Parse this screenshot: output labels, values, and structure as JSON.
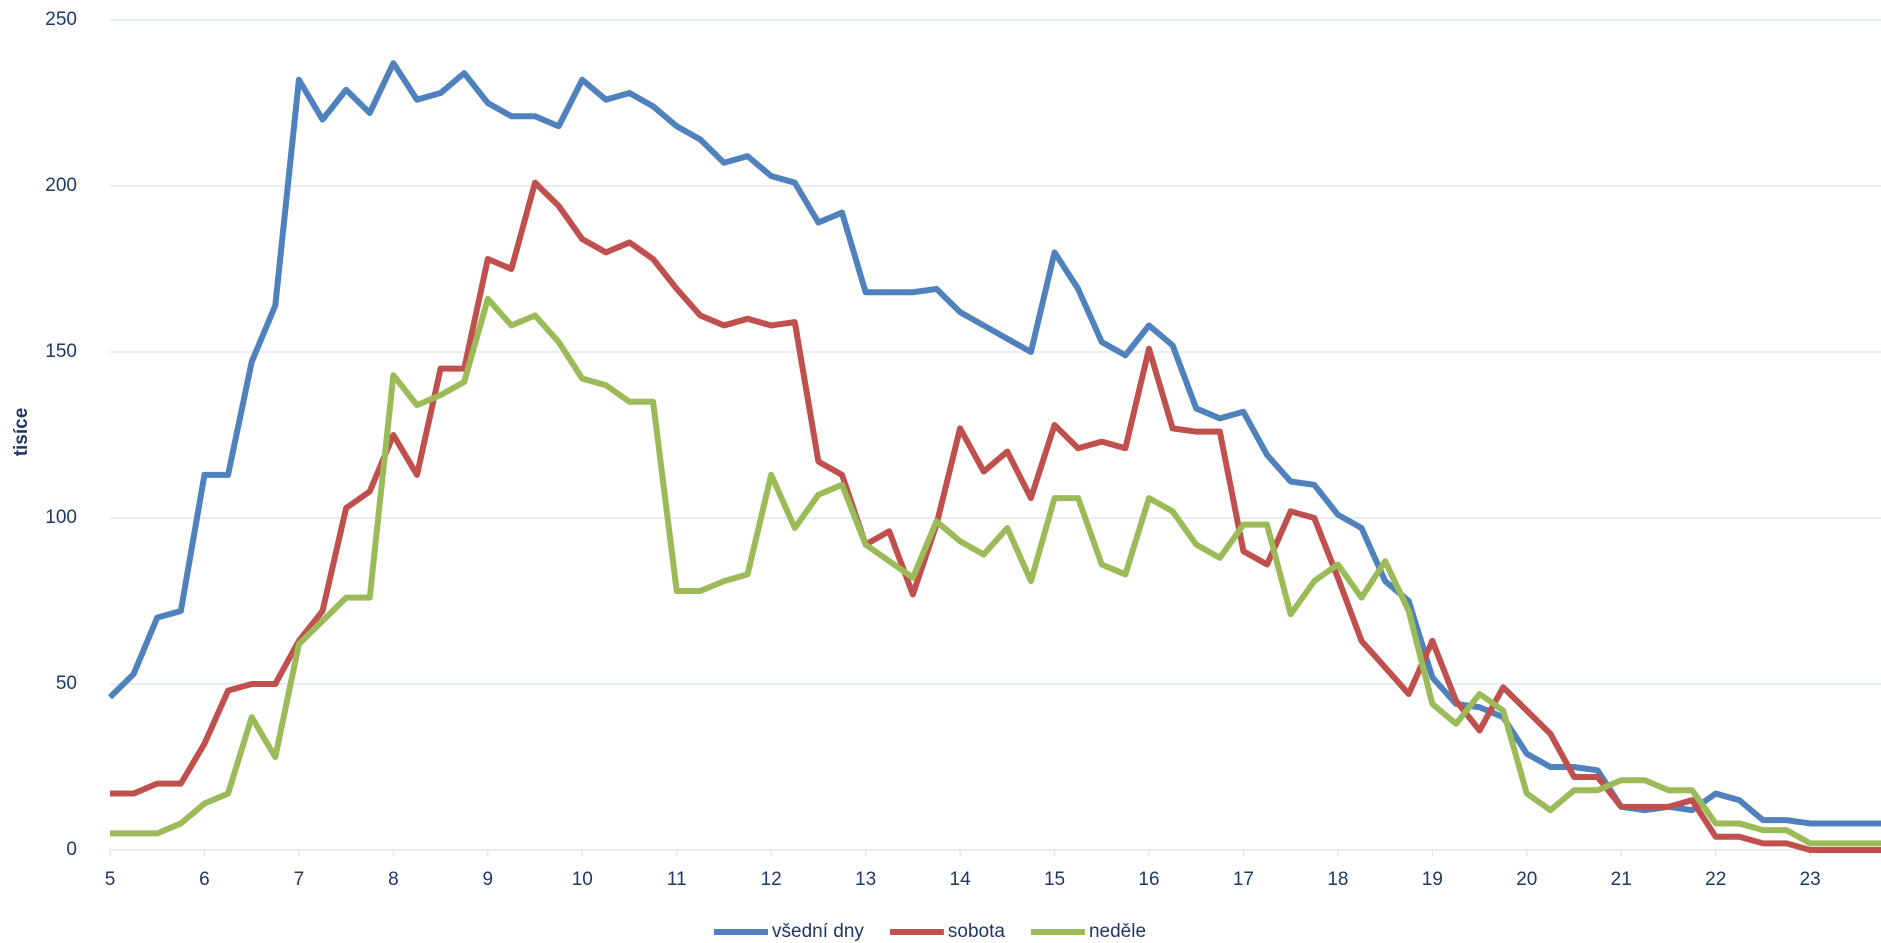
{
  "chart_data": {
    "type": "line",
    "y_label": "tisíce",
    "x": [
      5,
      5.25,
      5.5,
      5.75,
      6,
      6.25,
      6.5,
      6.75,
      7,
      7.25,
      7.5,
      7.75,
      8,
      8.25,
      8.5,
      8.75,
      9,
      9.25,
      9.5,
      9.75,
      10,
      10.25,
      10.5,
      10.75,
      11,
      11.25,
      11.5,
      11.75,
      12,
      12.25,
      12.5,
      12.75,
      13,
      13.25,
      13.5,
      13.75,
      14,
      14.25,
      14.5,
      14.75,
      15,
      15.25,
      15.5,
      15.75,
      16,
      16.25,
      16.5,
      16.75,
      17,
      17.25,
      17.5,
      17.75,
      18,
      18.25,
      18.5,
      18.75,
      19,
      19.25,
      19.5,
      19.75,
      20,
      20.25,
      20.5,
      20.75,
      21,
      21.25,
      21.5,
      21.75,
      22,
      22.25,
      22.5,
      22.75,
      23,
      23.25,
      23.5,
      23.75
    ],
    "series": [
      {
        "name": "všední dny",
        "color": "#4f81bd",
        "values": [
          46,
          53,
          70,
          72,
          113,
          113,
          147,
          164,
          232,
          220,
          229,
          222,
          237,
          226,
          228,
          234,
          225,
          221,
          221,
          218,
          232,
          226,
          228,
          224,
          218,
          214,
          207,
          209,
          203,
          201,
          189,
          192,
          168,
          168,
          168,
          169,
          162,
          158,
          154,
          150,
          180,
          169,
          153,
          149,
          158,
          152,
          133,
          130,
          132,
          119,
          111,
          110,
          101,
          97,
          81,
          75,
          52,
          44,
          43,
          40,
          29,
          25,
          25,
          24,
          13,
          12,
          13,
          12,
          17,
          15,
          9,
          9,
          8,
          8,
          8,
          8
        ]
      },
      {
        "name": "sobota",
        "color": "#c0504d",
        "values": [
          17,
          17,
          20,
          20,
          32,
          48,
          50,
          50,
          63,
          72,
          103,
          108,
          125,
          113,
          145,
          145,
          178,
          175,
          201,
          194,
          184,
          180,
          183,
          178,
          169,
          161,
          158,
          160,
          158,
          159,
          117,
          113,
          92,
          96,
          77,
          98,
          127,
          114,
          120,
          106,
          128,
          121,
          123,
          121,
          151,
          127,
          126,
          126,
          90,
          86,
          102,
          100,
          82,
          63,
          55,
          47,
          63,
          45,
          36,
          49,
          42,
          35,
          22,
          22,
          13,
          13,
          13,
          15,
          4,
          4,
          2,
          2,
          0,
          0,
          0,
          0
        ]
      },
      {
        "name": "neděle",
        "color": "#9bbb59",
        "values": [
          5,
          5,
          5,
          8,
          14,
          17,
          40,
          28,
          62,
          69,
          76,
          76,
          143,
          134,
          137,
          141,
          166,
          158,
          161,
          153,
          142,
          140,
          135,
          135,
          78,
          78,
          81,
          83,
          113,
          97,
          107,
          110,
          92,
          87,
          82,
          99,
          93,
          89,
          97,
          81,
          106,
          106,
          86,
          83,
          106,
          102,
          92,
          88,
          98,
          98,
          71,
          81,
          86,
          76,
          87,
          72,
          44,
          38,
          47,
          42,
          17,
          12,
          18,
          18,
          21,
          21,
          18,
          18,
          8,
          8,
          6,
          6,
          2,
          2,
          2,
          2
        ]
      }
    ],
    "xlim": [
      5,
      23.75
    ],
    "xticks": [
      5,
      6,
      7,
      8,
      9,
      10,
      11,
      12,
      13,
      14,
      15,
      16,
      17,
      18,
      19,
      20,
      21,
      22,
      23
    ],
    "ylim": [
      0,
      250
    ],
    "yticks": [
      0,
      50,
      100,
      150,
      200,
      250
    ],
    "grid": true,
    "legend": "bottom"
  }
}
